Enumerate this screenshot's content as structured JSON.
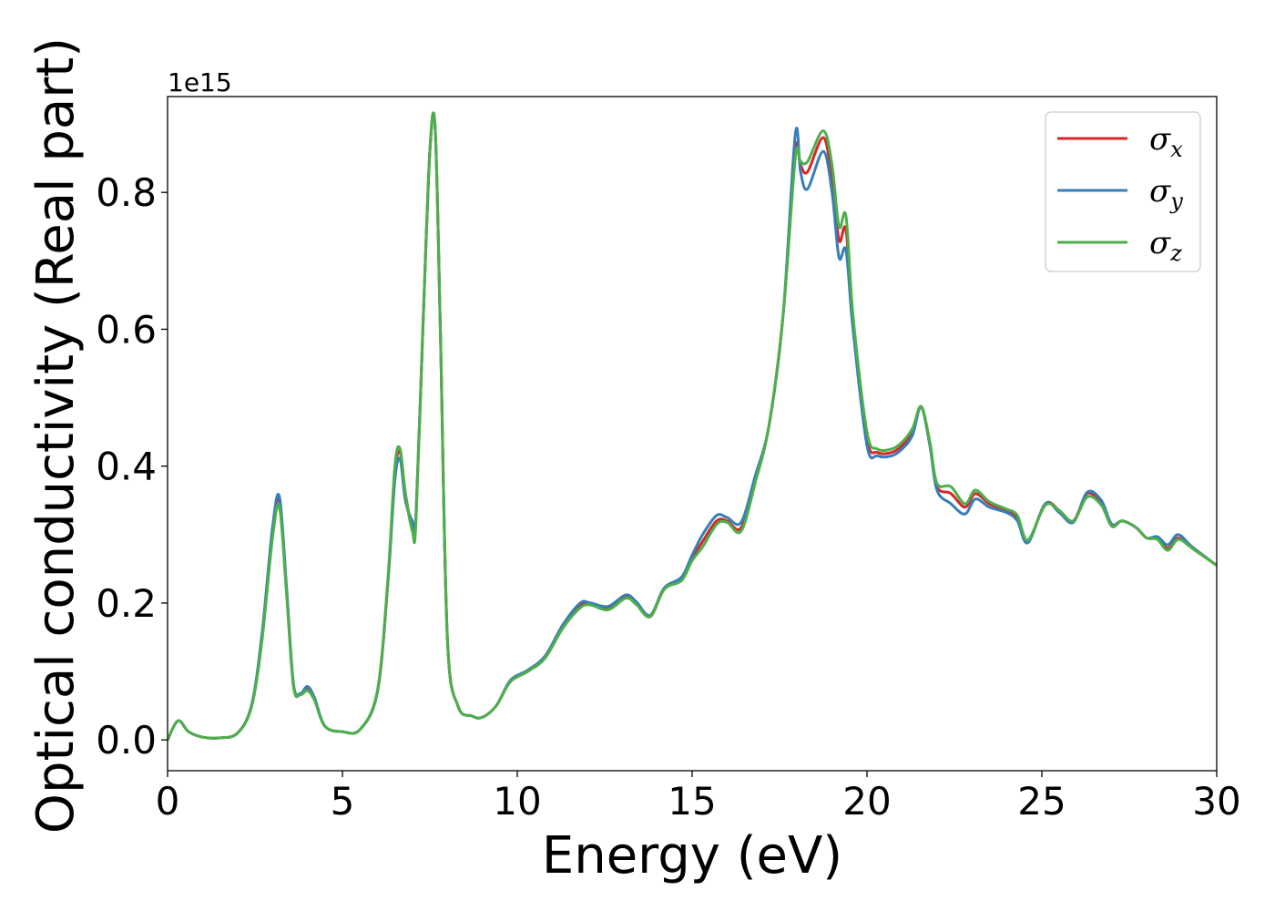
{
  "chart_data": {
    "type": "line",
    "title": "",
    "xlabel": "Energy (eV)",
    "ylabel": "Optical conductivity (Real part)",
    "y_offset_label": "1e15",
    "xlim": [
      0,
      30
    ],
    "ylim": [
      -0.045,
      0.94
    ],
    "x_ticks": [
      0,
      5,
      10,
      15,
      20,
      25,
      30
    ],
    "y_ticks": [
      0.0,
      0.2,
      0.4,
      0.6,
      0.8
    ],
    "grid": false,
    "legend_position": "top-right",
    "x": [
      0,
      0.3,
      0.6,
      1.0,
      1.5,
      2.0,
      2.4,
      2.7,
      3.0,
      3.2,
      3.4,
      3.6,
      3.8,
      4.0,
      4.2,
      4.5,
      5.0,
      5.5,
      6.0,
      6.3,
      6.5,
      6.65,
      6.8,
      7.0,
      7.1,
      7.3,
      7.5,
      7.65,
      7.8,
      8.0,
      8.3,
      8.7,
      9.0,
      9.4,
      9.8,
      10.3,
      10.8,
      11.3,
      11.8,
      12.1,
      12.6,
      13.1,
      13.4,
      13.8,
      14.2,
      14.7,
      15.0,
      15.3,
      15.7,
      16.0,
      16.4,
      16.8,
      17.2,
      17.6,
      17.95,
      18.1,
      18.3,
      18.75,
      19.0,
      19.2,
      19.4,
      19.6,
      20.0,
      20.3,
      20.7,
      21.0,
      21.3,
      21.55,
      21.8,
      22.0,
      22.4,
      22.8,
      23.1,
      23.5,
      24.0,
      24.3,
      24.6,
      25.1,
      25.5,
      25.9,
      26.3,
      26.7,
      27.0,
      27.3,
      27.7,
      28.0,
      28.3,
      28.6,
      28.9,
      29.3,
      30.0
    ],
    "series": [
      {
        "name": "σx",
        "color": "#d62728",
        "values": [
          0.0,
          0.028,
          0.012,
          0.004,
          0.003,
          0.01,
          0.05,
          0.15,
          0.3,
          0.35,
          0.22,
          0.08,
          0.067,
          0.075,
          0.06,
          0.02,
          0.012,
          0.015,
          0.07,
          0.23,
          0.39,
          0.42,
          0.36,
          0.31,
          0.32,
          0.6,
          0.86,
          0.895,
          0.6,
          0.15,
          0.05,
          0.035,
          0.033,
          0.05,
          0.085,
          0.1,
          0.12,
          0.165,
          0.197,
          0.2,
          0.192,
          0.21,
          0.2,
          0.18,
          0.22,
          0.235,
          0.265,
          0.29,
          0.32,
          0.32,
          0.31,
          0.38,
          0.46,
          0.62,
          0.86,
          0.84,
          0.83,
          0.88,
          0.82,
          0.73,
          0.745,
          0.61,
          0.44,
          0.42,
          0.42,
          0.43,
          0.45,
          0.487,
          0.43,
          0.37,
          0.36,
          0.34,
          0.36,
          0.345,
          0.335,
          0.325,
          0.29,
          0.345,
          0.335,
          0.32,
          0.36,
          0.345,
          0.315,
          0.32,
          0.31,
          0.295,
          0.295,
          0.28,
          0.295,
          0.28,
          0.255
        ]
      },
      {
        "name": "σy",
        "color": "#377eb8",
        "values": [
          0.0,
          0.028,
          0.012,
          0.004,
          0.003,
          0.01,
          0.05,
          0.155,
          0.31,
          0.355,
          0.225,
          0.082,
          0.068,
          0.078,
          0.062,
          0.02,
          0.012,
          0.015,
          0.07,
          0.23,
          0.38,
          0.41,
          0.35,
          0.32,
          0.325,
          0.6,
          0.86,
          0.895,
          0.6,
          0.15,
          0.05,
          0.035,
          0.033,
          0.05,
          0.087,
          0.102,
          0.123,
          0.168,
          0.2,
          0.2,
          0.195,
          0.212,
          0.202,
          0.182,
          0.222,
          0.238,
          0.27,
          0.3,
          0.328,
          0.325,
          0.318,
          0.385,
          0.46,
          0.62,
          0.885,
          0.83,
          0.805,
          0.86,
          0.8,
          0.705,
          0.715,
          0.6,
          0.43,
          0.415,
          0.415,
          0.425,
          0.445,
          0.487,
          0.43,
          0.365,
          0.345,
          0.33,
          0.352,
          0.34,
          0.332,
          0.32,
          0.288,
          0.345,
          0.332,
          0.318,
          0.362,
          0.35,
          0.315,
          0.32,
          0.31,
          0.295,
          0.297,
          0.285,
          0.3,
          0.282,
          0.255
        ]
      },
      {
        "name": "σz",
        "color": "#4daf4a",
        "values": [
          0.0,
          0.028,
          0.012,
          0.004,
          0.003,
          0.01,
          0.048,
          0.145,
          0.295,
          0.34,
          0.215,
          0.078,
          0.066,
          0.072,
          0.058,
          0.02,
          0.012,
          0.015,
          0.072,
          0.235,
          0.4,
          0.425,
          0.36,
          0.305,
          0.315,
          0.6,
          0.86,
          0.895,
          0.6,
          0.15,
          0.05,
          0.035,
          0.033,
          0.05,
          0.085,
          0.1,
          0.12,
          0.163,
          0.193,
          0.197,
          0.19,
          0.207,
          0.198,
          0.18,
          0.22,
          0.233,
          0.262,
          0.282,
          0.315,
          0.318,
          0.305,
          0.375,
          0.46,
          0.62,
          0.85,
          0.845,
          0.845,
          0.89,
          0.84,
          0.75,
          0.765,
          0.62,
          0.45,
          0.425,
          0.425,
          0.435,
          0.455,
          0.487,
          0.435,
          0.375,
          0.37,
          0.345,
          0.365,
          0.348,
          0.337,
          0.328,
          0.292,
          0.343,
          0.335,
          0.32,
          0.355,
          0.343,
          0.312,
          0.32,
          0.31,
          0.295,
          0.293,
          0.277,
          0.293,
          0.28,
          0.255
        ]
      }
    ]
  }
}
